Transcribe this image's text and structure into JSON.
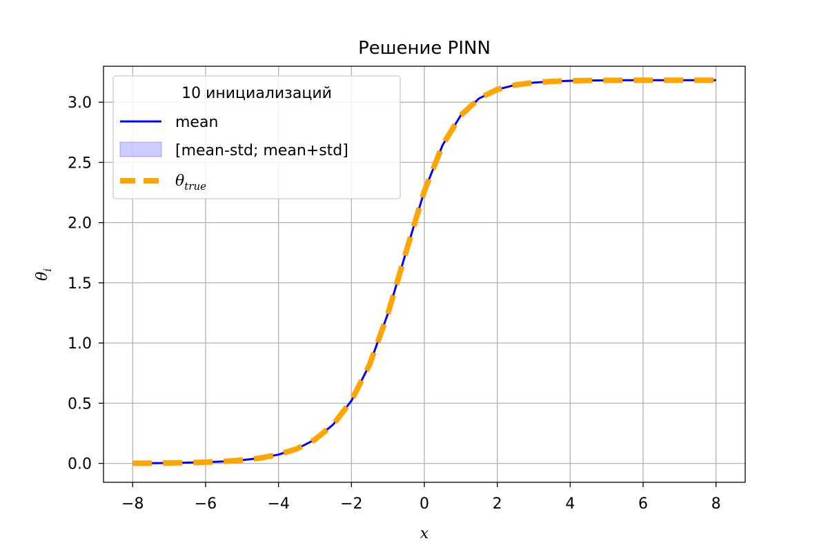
{
  "chart_data": {
    "type": "line",
    "title": "Решение PINN",
    "xlabel": "x",
    "ylabel": "θ_i",
    "xlim": [
      -8.8,
      8.8
    ],
    "ylim": [
      -0.157,
      3.299
    ],
    "grid": true,
    "x_ticks": [
      -8,
      -6,
      -4,
      -2,
      0,
      2,
      4,
      6,
      8
    ],
    "y_ticks": [
      0.0,
      0.5,
      1.0,
      1.5,
      2.0,
      2.5,
      3.0
    ],
    "x_tick_labels": [
      "−8",
      "−6",
      "−4",
      "−2",
      "0",
      "2",
      "4",
      "6",
      "8"
    ],
    "y_tick_labels": [
      "0.0",
      "0.5",
      "1.0",
      "1.5",
      "2.0",
      "2.5",
      "3.0"
    ],
    "legend": {
      "title": "10 инициализаций",
      "placement": "upper-left",
      "entries": [
        "mean",
        "[mean-std; mean+std]",
        "θ_true"
      ]
    },
    "x": [
      -8,
      -7.5,
      -7,
      -6.5,
      -6,
      -5.5,
      -5,
      -4.5,
      -4,
      -3.5,
      -3,
      -2.5,
      -2,
      -1.5,
      -1,
      -0.5,
      0,
      0.5,
      1,
      1.5,
      2,
      2.5,
      3,
      3.5,
      4,
      4.5,
      5,
      5.5,
      6,
      6.5,
      7,
      7.5,
      8
    ],
    "series": [
      {
        "name": "mean",
        "color": "#0000ff",
        "style": "solid",
        "values": [
          0.0013,
          0.0022,
          0.0036,
          0.006,
          0.0099,
          0.0163,
          0.0269,
          0.0444,
          0.0732,
          0.1205,
          0.1978,
          0.3229,
          0.5206,
          0.8219,
          1.2435,
          1.758,
          2.2619,
          2.6436,
          2.8909,
          3.0314,
          3.1062,
          3.1437,
          3.1628,
          3.1728,
          3.1779,
          3.1805,
          3.1818,
          3.1826,
          3.1829,
          3.1831,
          3.1832,
          3.1833,
          3.1833
        ]
      },
      {
        "name": "θ_true",
        "color": "#ffa500",
        "style": "dashed",
        "values": [
          0.0013,
          0.0022,
          0.0036,
          0.006,
          0.0099,
          0.0163,
          0.0269,
          0.0444,
          0.0732,
          0.1205,
          0.1978,
          0.3229,
          0.5206,
          0.8219,
          1.2435,
          1.758,
          2.2619,
          2.6436,
          2.8909,
          3.0314,
          3.1062,
          3.1437,
          3.1628,
          3.1728,
          3.1779,
          3.1805,
          3.1818,
          3.1826,
          3.1829,
          3.1831,
          3.1832,
          3.1833,
          3.1833
        ]
      }
    ],
    "band": {
      "name": "[mean-std; mean+std]",
      "color": "#0000ff",
      "lower": [
        0.0013,
        0.0022,
        0.0036,
        0.006,
        0.0099,
        0.0163,
        0.0269,
        0.0444,
        0.0732,
        0.1205,
        0.1978,
        0.3229,
        0.5206,
        0.8219,
        1.2435,
        1.758,
        2.2619,
        2.6436,
        2.8909,
        3.0314,
        3.1062,
        3.1437,
        3.1628,
        3.1728,
        3.1779,
        3.1805,
        3.1818,
        3.1826,
        3.1829,
        3.1831,
        3.1832,
        3.1833,
        3.1833
      ],
      "upper": [
        0.0013,
        0.0022,
        0.0036,
        0.006,
        0.0099,
        0.0163,
        0.0269,
        0.0444,
        0.0732,
        0.1205,
        0.1978,
        0.3229,
        0.5206,
        0.8219,
        1.2435,
        1.758,
        2.2619,
        2.6436,
        2.8909,
        3.0314,
        3.1062,
        3.1437,
        3.1628,
        3.1728,
        3.1779,
        3.1805,
        3.1818,
        3.1826,
        3.1829,
        3.1831,
        3.1832,
        3.1833,
        3.1833
      ]
    }
  }
}
